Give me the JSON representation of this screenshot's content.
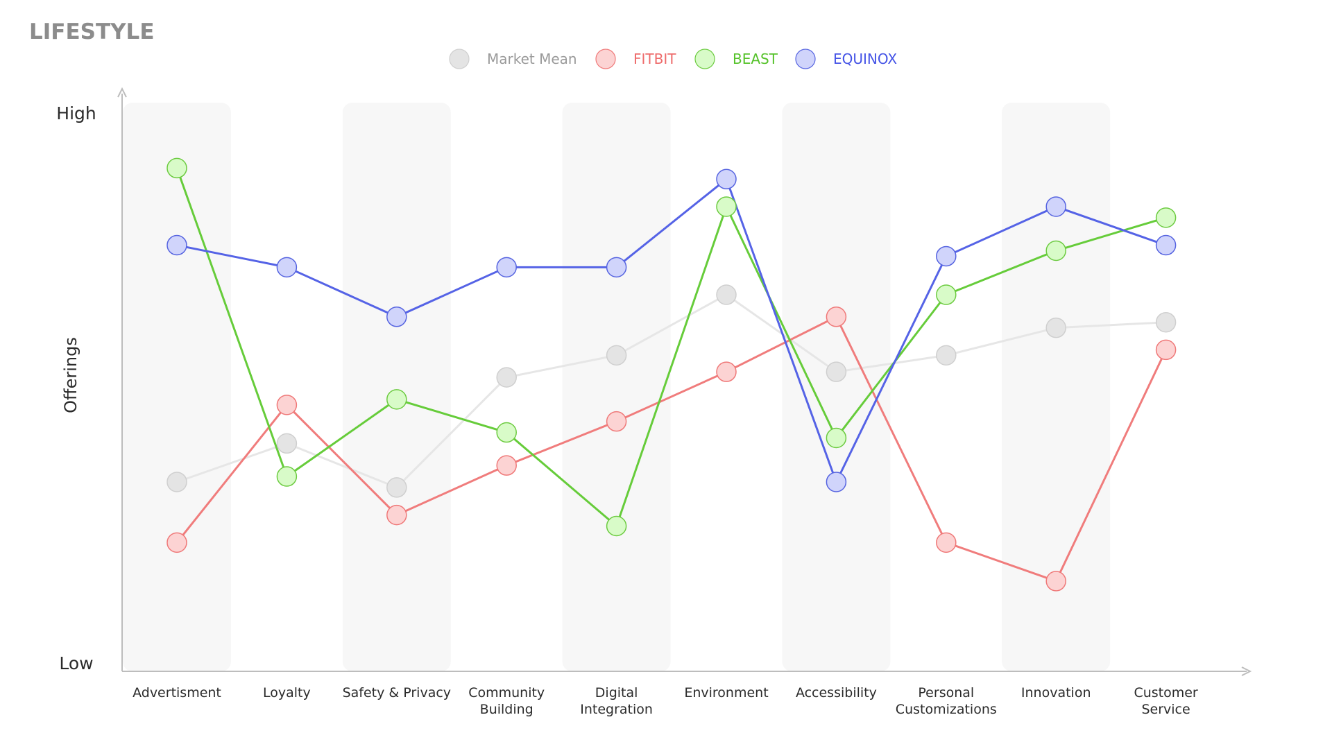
{
  "chart_data": {
    "type": "line",
    "title": "LIFESTYLE",
    "ylabel": "Offerings",
    "xlabel": "",
    "y_tick_labels": {
      "high": "High",
      "low": "Low"
    },
    "ylim": [
      0,
      100
    ],
    "grid": false,
    "legend_position": "top-center",
    "categories": [
      [
        "Advertisment"
      ],
      [
        "Loyalty"
      ],
      [
        "Safety & Privacy"
      ],
      [
        "Community",
        "Building"
      ],
      [
        "Digital",
        "Integration"
      ],
      [
        "Environment"
      ],
      [
        "Accessibility"
      ],
      [
        "Personal",
        "Customizations"
      ],
      [
        "Innovation"
      ],
      [
        "Customer",
        "Service"
      ]
    ],
    "series": [
      {
        "name": "Market Mean",
        "color": "#e4e4e4",
        "stroke": "#cfcfcf",
        "label_color": "#9a9a9a",
        "line_color": "#e6e6e6",
        "values": [
          33,
          40,
          32,
          52,
          56,
          67,
          53,
          56,
          61,
          62
        ]
      },
      {
        "name": "FITBIT",
        "color": "#fcd3d3",
        "stroke": "#ef7878",
        "label_color": "#ee6b6b",
        "line_color": "#f07c7c",
        "values": [
          22,
          47,
          27,
          36,
          44,
          53,
          63,
          22,
          15,
          57
        ]
      },
      {
        "name": "BEAST",
        "color": "#d8fbc8",
        "stroke": "#6ccb40",
        "label_color": "#55c22a",
        "line_color": "#66cc3a",
        "values": [
          90,
          34,
          48,
          42,
          25,
          83,
          41,
          67,
          75,
          81
        ]
      },
      {
        "name": "EQUINOX",
        "color": "#d0d4fb",
        "stroke": "#5563e0",
        "label_color": "#4453e6",
        "line_color": "#5563e6",
        "values": [
          76,
          72,
          63,
          72,
          72,
          88,
          33,
          74,
          83,
          76
        ]
      }
    ]
  }
}
